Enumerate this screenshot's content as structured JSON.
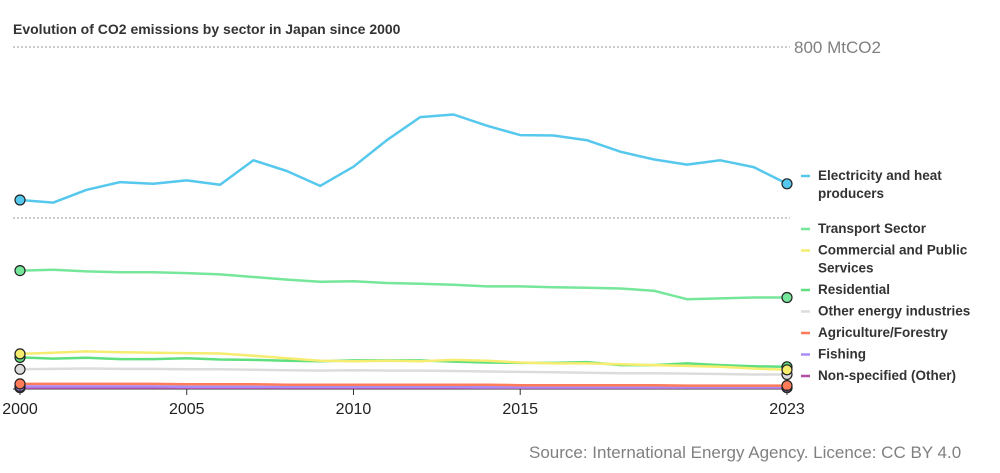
{
  "chart_data": {
    "type": "line",
    "title": "Evolution of CO2 emissions by sector in Japan since 2000",
    "source": "Source: International Energy Agency. Licence: CC BY 4.0",
    "y_max_label": "800 MtCO2",
    "x": [
      2000,
      2001,
      2002,
      2003,
      2004,
      2005,
      2006,
      2007,
      2008,
      2009,
      2010,
      2011,
      2012,
      2013,
      2014,
      2015,
      2016,
      2017,
      2018,
      2019,
      2020,
      2021,
      2022,
      2023
    ],
    "xticks": [
      "2000",
      "2005",
      "2010",
      "2015",
      "2023"
    ],
    "ylim": [
      0,
      800
    ],
    "series": [
      {
        "name": "Electricity and heat producers",
        "label_lines": [
          "Electricity and heat",
          "producers"
        ],
        "color": "#56c8ee",
        "values": [
          442,
          436,
          466,
          484,
          480,
          488,
          478,
          535,
          510,
          475,
          520,
          582,
          636,
          642,
          616,
          594,
          593,
          582,
          555,
          537,
          525,
          535,
          519,
          480
        ]
      },
      {
        "name": "Transport Sector",
        "label_lines": [
          "Transport Sector"
        ],
        "color": "#76e69a",
        "values": [
          277,
          279,
          275,
          273,
          273,
          271,
          268,
          262,
          256,
          251,
          252,
          248,
          246,
          244,
          240,
          240,
          238,
          237,
          235,
          230,
          210,
          212,
          214,
          214
        ]
      },
      {
        "name": "Commercial and Public Services",
        "label_lines": [
          "Commercial and Public",
          "Services"
        ],
        "color": "#f5ec70",
        "values": [
          82,
          85,
          88,
          86,
          85,
          84,
          83,
          78,
          72,
          66,
          65,
          66,
          65,
          68,
          66,
          62,
          60,
          60,
          58,
          56,
          54,
          52,
          48,
          45
        ]
      },
      {
        "name": "Residential",
        "label_lines": [
          "Residential"
        ],
        "color": "#5fdf7e",
        "values": [
          74,
          71,
          73,
          70,
          70,
          72,
          69,
          68,
          66,
          65,
          67,
          67,
          67,
          64,
          62,
          61,
          61,
          63,
          56,
          56,
          60,
          56,
          53,
          52
        ]
      },
      {
        "name": "Other energy industries",
        "label_lines": [
          "Other energy industries"
        ],
        "color": "#dcdcdc",
        "values": [
          46,
          47,
          48,
          47,
          47,
          46,
          46,
          45,
          44,
          43,
          44,
          43,
          43,
          42,
          41,
          40,
          39,
          38,
          37,
          37,
          36,
          35,
          34,
          34
        ]
      },
      {
        "name": "Agriculture/Forestry",
        "label_lines": [
          "Agriculture/Forestry"
        ],
        "color": "#ff7b5a",
        "values": [
          12,
          12,
          12,
          12,
          12,
          11,
          11,
          11,
          10,
          10,
          10,
          10,
          10,
          10,
          10,
          9,
          9,
          9,
          9,
          9,
          8,
          8,
          8,
          8
        ]
      },
      {
        "name": "Fishing",
        "label_lines": [
          "Fishing"
        ],
        "color": "#a98cf5",
        "values": [
          6,
          6,
          6,
          6,
          6,
          5,
          5,
          5,
          5,
          5,
          5,
          5,
          5,
          5,
          4,
          4,
          4,
          4,
          4,
          4,
          4,
          4,
          4,
          4
        ]
      },
      {
        "name": "Non-specified (Other)",
        "label_lines": [
          "Non-specified (Other)"
        ],
        "color": "#b14fa6",
        "values": [
          3,
          3,
          3,
          3,
          3,
          3,
          3,
          3,
          3,
          3,
          3,
          3,
          3,
          3,
          3,
          3,
          3,
          3,
          3,
          3,
          3,
          3,
          3,
          3
        ]
      }
    ]
  }
}
